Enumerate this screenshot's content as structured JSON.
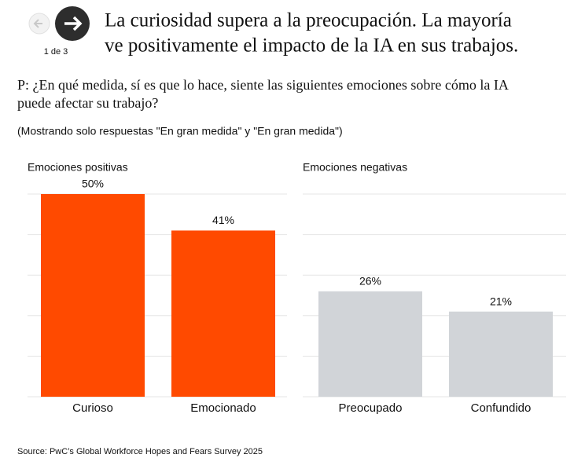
{
  "header": {
    "title_lines": [
      "La curiosidad supera a la preocupación. La mayoría",
      "ve positivamente el impacto de la IA en sus trabajos."
    ],
    "page_indicator": "1 de 3"
  },
  "question_lines": [
    "P: ¿En qué medida, sí es que lo hace, siente las siguientes emociones sobre cómo la IA",
    "puede afectar su trabajo?"
  ],
  "note": "(Mostrando solo respuestas \"En gran medida\" y \"En gran medida\")",
  "source": "Source: PwC’s Global Workforce Hopes and Fears Survey 2025",
  "chart_data": [
    {
      "type": "bar",
      "title": "Emociones positivas",
      "categories": [
        "Curioso",
        "Emocionado"
      ],
      "values": [
        50,
        41
      ],
      "value_labels": [
        "50%",
        "41%"
      ],
      "color": "#ff4a00",
      "ylim": [
        0,
        50
      ],
      "yticks": [
        0,
        10,
        20,
        30,
        40,
        50
      ],
      "grid": true
    },
    {
      "type": "bar",
      "title": "Emociones negativas",
      "categories": [
        "Preocupado",
        "Confundido"
      ],
      "values": [
        26,
        21
      ],
      "value_labels": [
        "26%",
        "21%"
      ],
      "color": "#d1d4d8",
      "ylim": [
        0,
        50
      ],
      "yticks": [
        0,
        10,
        20,
        30,
        40,
        50
      ],
      "grid": true
    }
  ]
}
